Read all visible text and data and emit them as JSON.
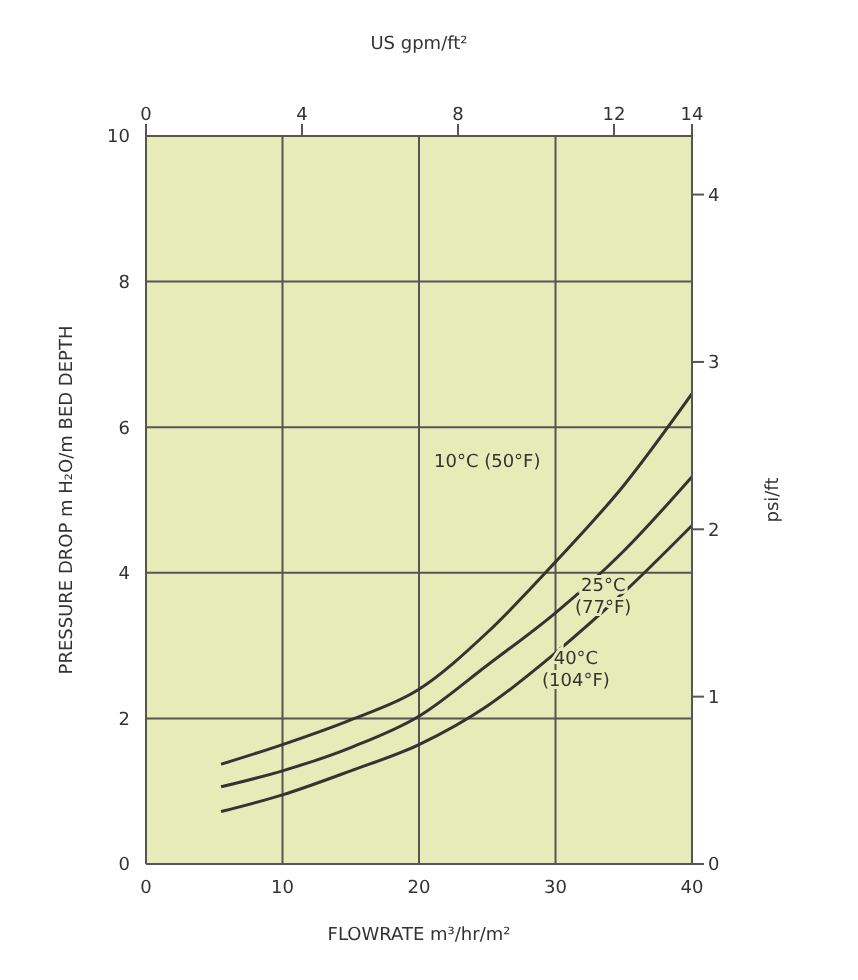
{
  "chart_data": {
    "type": "line",
    "xlabel": "FLOWRATE m³/hr/m²",
    "ylabel": "PRESSURE DROP m H₂O/m BED DEPTH",
    "x2label": "US gpm/ft²",
    "y2label": "psi/ft",
    "x": [
      5.5,
      10,
      15,
      20,
      25,
      30,
      35,
      40
    ],
    "series": [
      {
        "color": "#333333",
        "values": [
          1.37,
          1.64,
          1.98,
          2.4,
          3.18,
          4.15,
          5.2,
          6.46
        ]
      },
      {
        "color": "#333333",
        "values": [
          1.06,
          1.28,
          1.6,
          2.03,
          2.73,
          3.45,
          4.3,
          5.32
        ]
      },
      {
        "color": "#333333",
        "values": [
          0.72,
          0.95,
          1.28,
          1.64,
          2.17,
          2.9,
          3.73,
          4.65
        ]
      }
    ],
    "xlim": [
      0,
      40
    ],
    "xticks": [
      0,
      10,
      20,
      30,
      40
    ],
    "ylim": [
      0,
      10
    ],
    "yticks": [
      0,
      2,
      4,
      6,
      8,
      10
    ],
    "x2lim": [
      0,
      14
    ],
    "x2ticks": [
      0,
      4,
      8,
      12,
      14
    ],
    "y2lim": [
      0,
      4.35
    ],
    "y2ticks": [
      0,
      1,
      2,
      3,
      4
    ],
    "grid": true,
    "legend": false,
    "marker": "none",
    "line_style": "solid",
    "annotations": [
      "10°C (50°F)",
      "25°C (77°F)",
      "40°C (104°F)"
    ]
  }
}
